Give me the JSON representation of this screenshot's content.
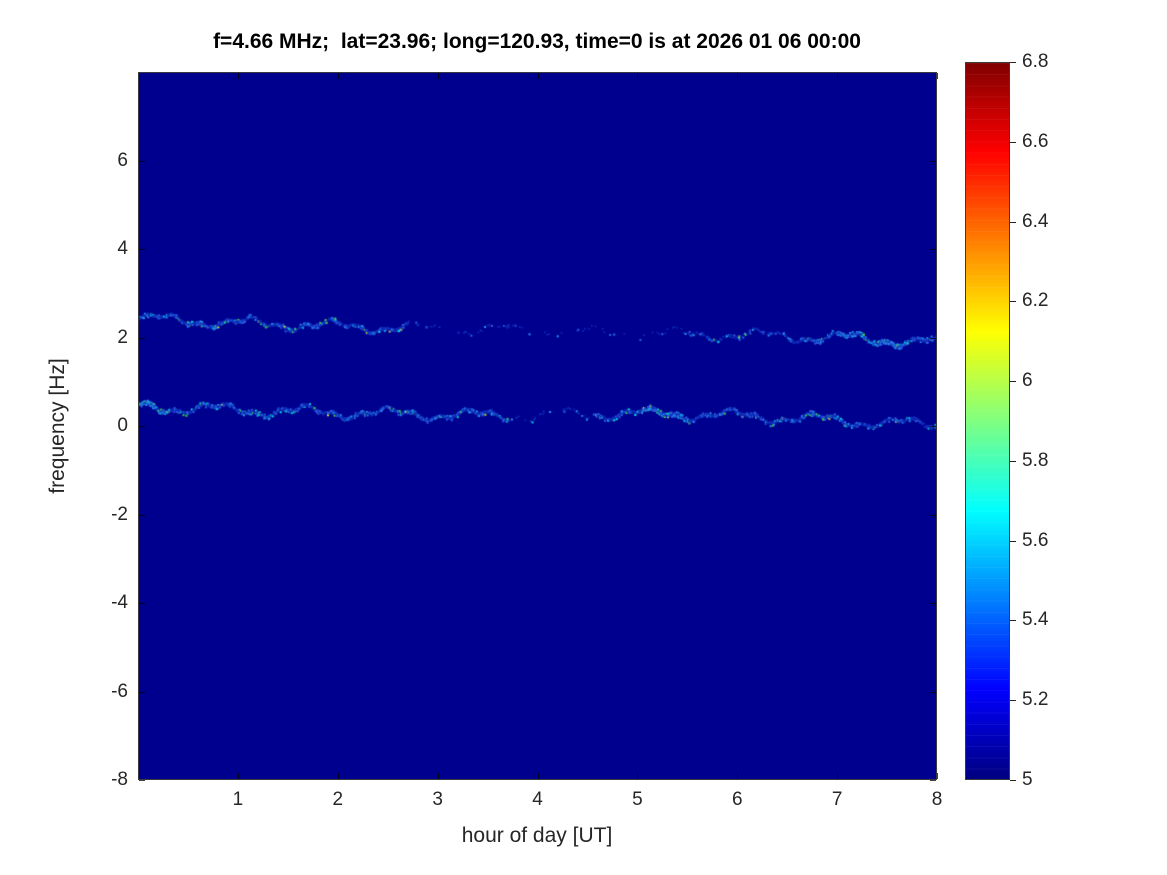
{
  "figure": {
    "background": "#ffffff"
  },
  "chart_data": {
    "type": "heatmap",
    "title": "f=4.66 MHz;  lat=23.96; long=120.93, time=0 is at 2026 01 06 00:00",
    "xlabel": "hour of day [UT]",
    "ylabel": "frequency [Hz]",
    "xlim": [
      0,
      8
    ],
    "ylim": [
      -8,
      8
    ],
    "xticks": [
      1,
      2,
      3,
      4,
      5,
      6,
      7,
      8
    ],
    "yticks": [
      -8,
      -6,
      -4,
      -2,
      0,
      2,
      4,
      6
    ],
    "grid": false,
    "legend": false,
    "background_value": 5,
    "background_color": "#00008f",
    "colorbar": {
      "colormap": "jet",
      "min": 5,
      "max": 6.8,
      "ticks": [
        5,
        5.2,
        5.4,
        5.6,
        5.8,
        6,
        6.2,
        6.4,
        6.6,
        6.8
      ]
    },
    "traces": [
      {
        "name": "upper-spectral-line",
        "points": [
          [
            0,
            2.45
          ],
          [
            0.5,
            2.4
          ],
          [
            1,
            2.35
          ],
          [
            1.5,
            2.32
          ],
          [
            2,
            2.28
          ],
          [
            2.5,
            2.25
          ],
          [
            3,
            2.22
          ],
          [
            3.5,
            2.2
          ],
          [
            4,
            2.18
          ],
          [
            4.5,
            2.15
          ],
          [
            5,
            2.12
          ],
          [
            5.5,
            2.1
          ],
          [
            6,
            2.08
          ],
          [
            6.5,
            2.05
          ],
          [
            7,
            2.02
          ],
          [
            7.5,
            1.97
          ],
          [
            8,
            1.9
          ]
        ],
        "visibility": [
          [
            0,
            2.7,
            0.95
          ],
          [
            2.7,
            4.0,
            0.12
          ],
          [
            4.0,
            5.5,
            0.08
          ],
          [
            5.5,
            6.6,
            0.45
          ],
          [
            6.6,
            8.01,
            0.85
          ]
        ],
        "hotspots": [
          [
            7.0,
            0.7
          ]
        ]
      },
      {
        "name": "near-zero-spectral-line",
        "points": [
          [
            0,
            0.45
          ],
          [
            0.5,
            0.42
          ],
          [
            1,
            0.38
          ],
          [
            1.5,
            0.35
          ],
          [
            2,
            0.32
          ],
          [
            2.5,
            0.3
          ],
          [
            3,
            0.28
          ],
          [
            3.5,
            0.25
          ],
          [
            4,
            0.25
          ],
          [
            4.55,
            0.3
          ],
          [
            5,
            0.3
          ],
          [
            5.5,
            0.28
          ],
          [
            6,
            0.25
          ],
          [
            6.5,
            0.2
          ],
          [
            7,
            0.15
          ],
          [
            7.5,
            0.08
          ],
          [
            8,
            0.05
          ]
        ],
        "visibility": [
          [
            0,
            3.7,
            0.95
          ],
          [
            3.7,
            4.55,
            0.15
          ],
          [
            4.55,
            8.01,
            0.9
          ]
        ],
        "hotspots": [
          [
            0.0,
            0.3
          ],
          [
            5.05,
            0.45
          ]
        ]
      }
    ]
  }
}
